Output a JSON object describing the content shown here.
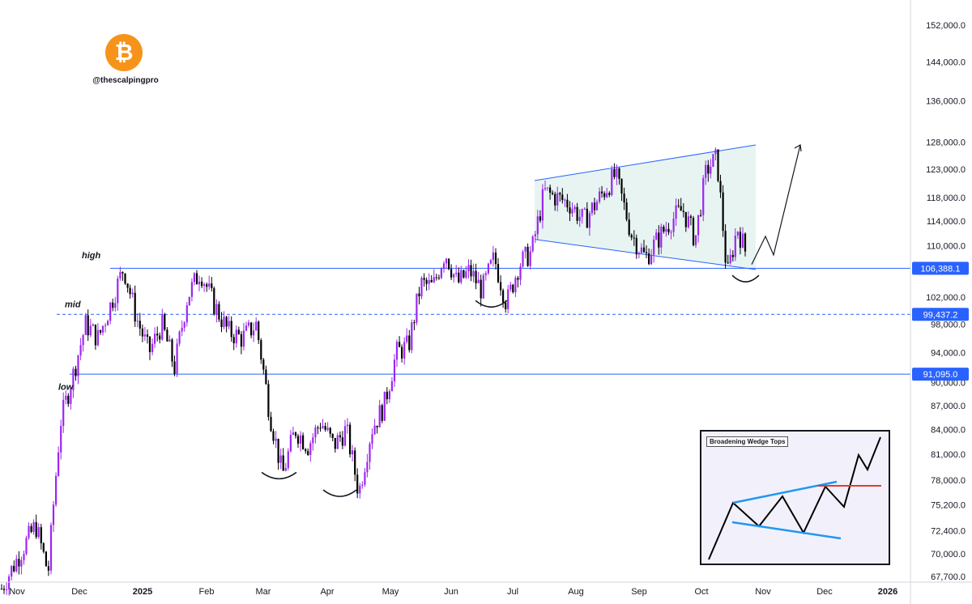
{
  "chart_data": {
    "type": "candlestick",
    "symbol_icon": "bitcoin-icon",
    "watermark_handle": "@thescalpingpro",
    "x_axis": {
      "tick_labels": [
        "Nov",
        "Dec",
        "2025",
        "Feb",
        "Mar",
        "Apr",
        "May",
        "Jun",
        "Jul",
        "Aug",
        "Sep",
        "Oct",
        "Nov",
        "Dec",
        "2026"
      ],
      "bold_ticks": [
        "2025",
        "2026"
      ]
    },
    "y_axis": {
      "scale": "log",
      "range": [
        66800,
        158000
      ],
      "tick_labels": [
        "152,000.0",
        "144,000.0",
        "136,000.0",
        "128,000.0",
        "123,000.0",
        "118,000.0",
        "114,000.0",
        "110,000.0",
        "102,000.0",
        "98,000.0",
        "94,000.0",
        "90,000.0",
        "87,000.0",
        "84,000.0",
        "81,000.0",
        "78,000.0",
        "75,200.0",
        "72,400.0",
        "70,000.0",
        "67,700.0"
      ],
      "tick_values": [
        152000,
        144000,
        136000,
        128000,
        123000,
        118000,
        114000,
        110000,
        102000,
        98000,
        94000,
        90000,
        87000,
        84000,
        81000,
        78000,
        75200,
        72400,
        70000,
        67700
      ]
    },
    "price_lines": [
      {
        "label": "106,388.1",
        "value": 106388.1,
        "style": "solid",
        "color": "#2962ff"
      },
      {
        "label": "99,437.2",
        "value": 99437.2,
        "style": "dashed",
        "color": "#2962ff"
      },
      {
        "label": "91,095.0",
        "value": 91095.0,
        "style": "solid",
        "color": "#2962ff"
      }
    ],
    "zone_labels": [
      "high",
      "mid",
      "low"
    ],
    "pattern": "broadening wedge",
    "wedge": {
      "upper_start": 121000,
      "upper_end": 127500,
      "lower_start": 111000,
      "lower_end": 106200
    },
    "projection": [
      107000,
      111500,
      108500,
      127500
    ],
    "price_path": [
      [
        "Nov",
        66500
      ],
      [
        "Nov",
        73000
      ],
      [
        "Nov",
        68000
      ],
      [
        "Nov",
        85000
      ],
      [
        "Nov",
        91000
      ],
      [
        "Dec",
        98000
      ],
      [
        "Dec",
        96000
      ],
      [
        "Dec",
        101000
      ],
      [
        "Dec",
        106500
      ],
      [
        "Dec",
        99000
      ],
      [
        "2025",
        94000
      ],
      [
        "2025",
        98000
      ],
      [
        "2025",
        92000
      ],
      [
        "2025",
        102000
      ],
      [
        "2025",
        106000
      ],
      [
        "Feb",
        101000
      ],
      [
        "Feb",
        97000
      ],
      [
        "Feb",
        96000
      ],
      [
        "Feb",
        98000
      ],
      [
        "Mar",
        86000
      ],
      [
        "Mar",
        78500
      ],
      [
        "Mar",
        84000
      ],
      [
        "Mar",
        82000
      ],
      [
        "Mar",
        85000
      ],
      [
        "Apr",
        82000
      ],
      [
        "Apr",
        84000
      ],
      [
        "Apr",
        76500
      ],
      [
        "Apr",
        84000
      ],
      [
        "Apr",
        87000
      ],
      [
        "May",
        94000
      ],
      [
        "May",
        95000
      ],
      [
        "May",
        104000
      ],
      [
        "May",
        103500
      ],
      [
        "May",
        109000
      ],
      [
        "Jun",
        104000
      ],
      [
        "Jun",
        106000
      ],
      [
        "Jun",
        103000
      ],
      [
        "Jun",
        108000
      ],
      [
        "Jun",
        101000
      ],
      [
        "Jul",
        107000
      ],
      [
        "Jul",
        109000
      ],
      [
        "Jul",
        119000
      ],
      [
        "Jul",
        118000
      ],
      [
        "Jul",
        117000
      ],
      [
        "Aug",
        114000
      ],
      [
        "Aug",
        118000
      ],
      [
        "Aug",
        122000
      ],
      [
        "Aug",
        112000
      ],
      [
        "Sep",
        108000
      ],
      [
        "Sep",
        111000
      ],
      [
        "Sep",
        114000
      ],
      [
        "Sep",
        116000
      ],
      [
        "Sep",
        111000
      ],
      [
        "Oct",
        123000
      ],
      [
        "Oct",
        125000
      ],
      [
        "Oct",
        105000
      ],
      [
        "Oct",
        113000
      ],
      [
        "Oct",
        108000
      ],
      [
        "Oct",
        107000
      ]
    ]
  },
  "inset": {
    "title": "Broadening Wedge Tops",
    "colors": {
      "zigzag": "#000000",
      "wedge_lines": "#2196f3",
      "breakout_line": "#e53935"
    }
  },
  "colors": {
    "bull": "#9c27f0",
    "bear": "#000000",
    "lines": "#2962ff",
    "wedge_fill": "#e3f2ef",
    "wedge_stroke": "#2962ff",
    "logo": "#f7931a"
  }
}
